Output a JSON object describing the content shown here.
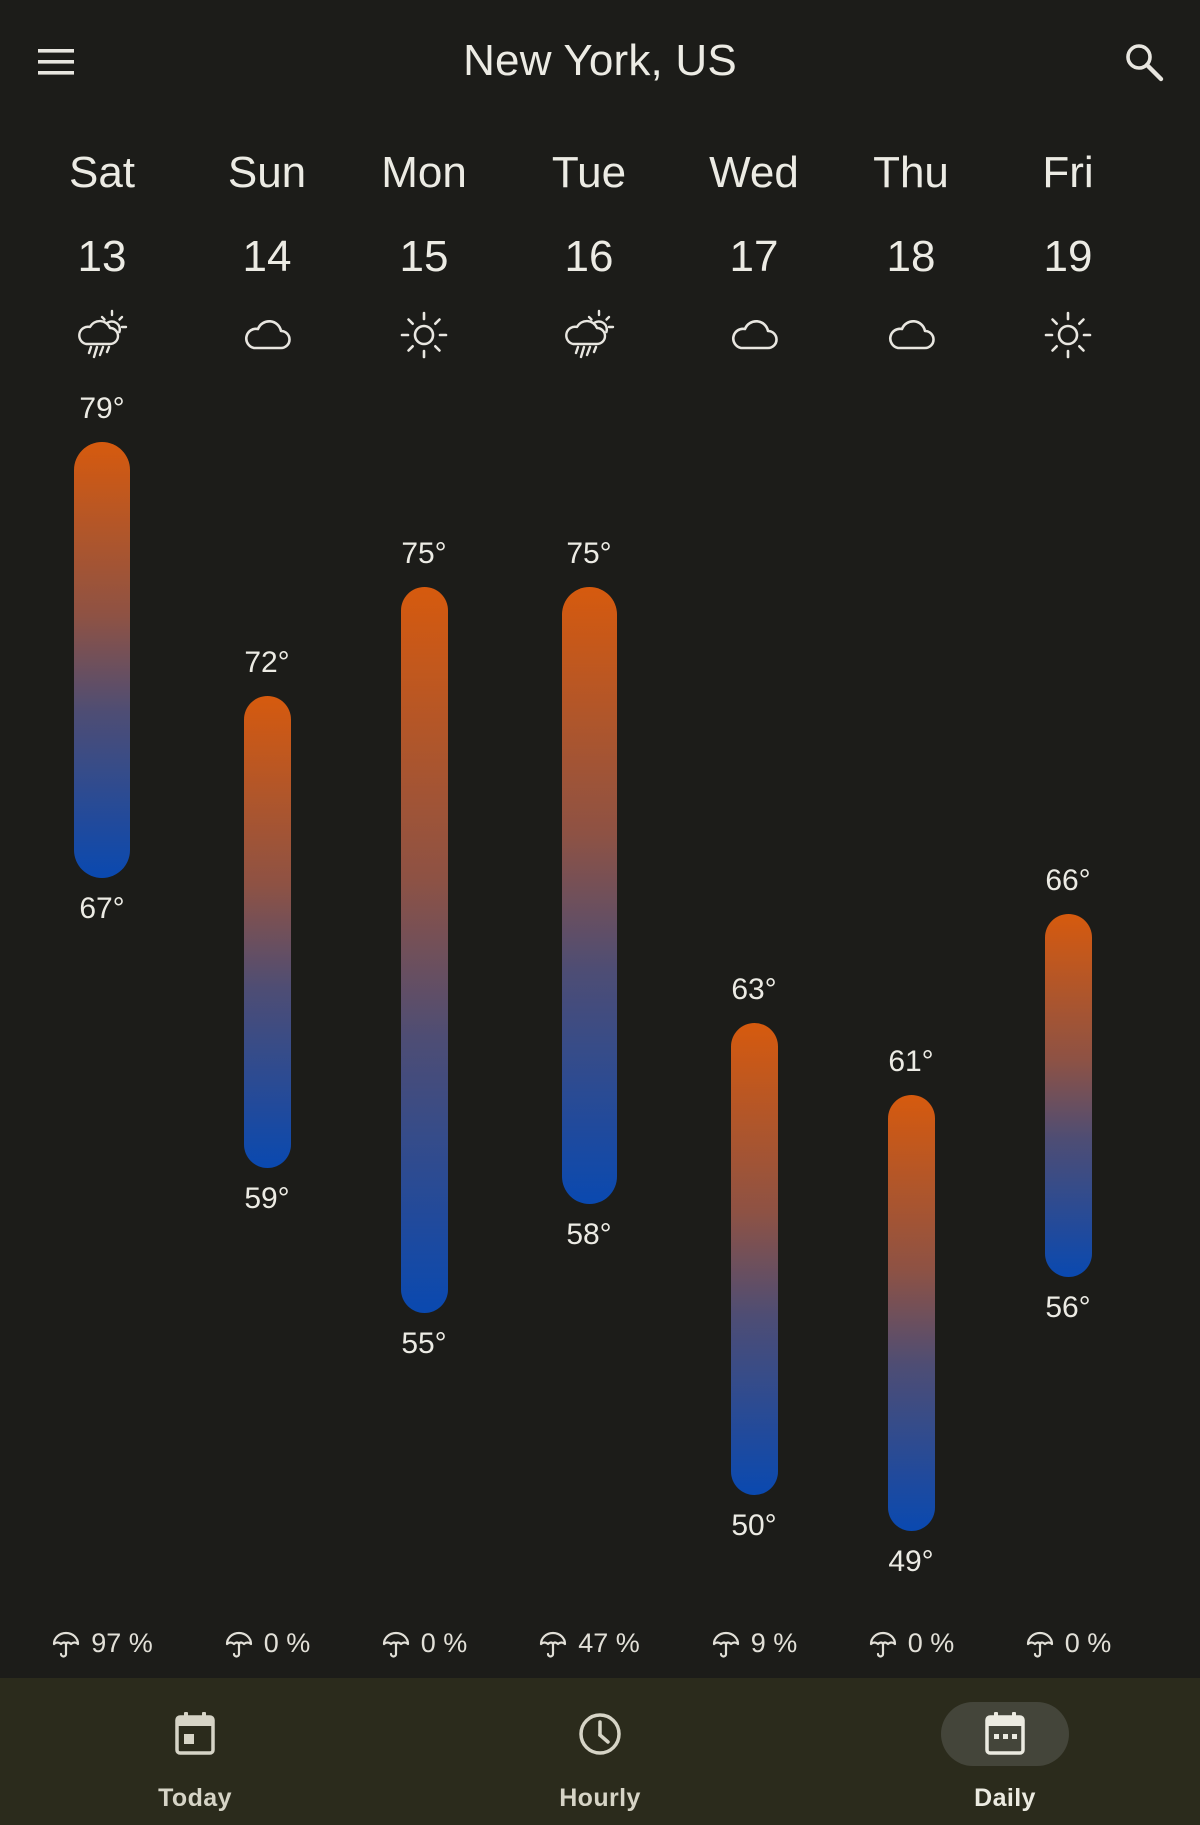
{
  "header": {
    "title": "New York, US",
    "menu_icon": "menu-icon",
    "search_icon": "search-icon"
  },
  "days": [
    {
      "name": "Sat",
      "date": "13",
      "icon": "rain-sun-icon",
      "high": "79°",
      "low": "67°",
      "high_value": 79,
      "low_value": 67,
      "precip": "97 %"
    },
    {
      "name": "Sun",
      "date": "14",
      "icon": "cloud-icon",
      "high": "72°",
      "low": "59°",
      "high_value": 72,
      "low_value": 59,
      "precip": "0 %"
    },
    {
      "name": "Mon",
      "date": "15",
      "icon": "sun-icon",
      "high": "75°",
      "low": "55°",
      "high_value": 75,
      "low_value": 55,
      "precip": "0 %"
    },
    {
      "name": "Tue",
      "date": "16",
      "icon": "rain-sun-icon",
      "high": "75°",
      "low": "58°",
      "high_value": 75,
      "low_value": 58,
      "precip": "47 %"
    },
    {
      "name": "Wed",
      "date": "17",
      "icon": "cloud-icon",
      "high": "63°",
      "low": "50°",
      "high_value": 63,
      "low_value": 50,
      "precip": "9 %"
    },
    {
      "name": "Thu",
      "date": "18",
      "icon": "cloud-icon",
      "high": "61°",
      "low": "49°",
      "high_value": 61,
      "low_value": 49,
      "precip": "0 %"
    },
    {
      "name": "Fri",
      "date": "19",
      "icon": "sun-icon",
      "high": "66°",
      "low": "56°",
      "high_value": 66,
      "low_value": 56,
      "precip": "0 %"
    }
  ],
  "bottom_nav": {
    "items": [
      {
        "label": "Today",
        "icon": "calendar-today-icon",
        "active": false
      },
      {
        "label": "Hourly",
        "icon": "clock-icon",
        "active": false
      },
      {
        "label": "Daily",
        "icon": "calendar-week-icon",
        "active": true
      }
    ]
  },
  "colors": {
    "background": "#1c1c19",
    "nav_background": "#2b2b1c",
    "bar_warm": "#d65a0e",
    "bar_cool": "#0a49b0",
    "text": "#ecebe4"
  }
}
